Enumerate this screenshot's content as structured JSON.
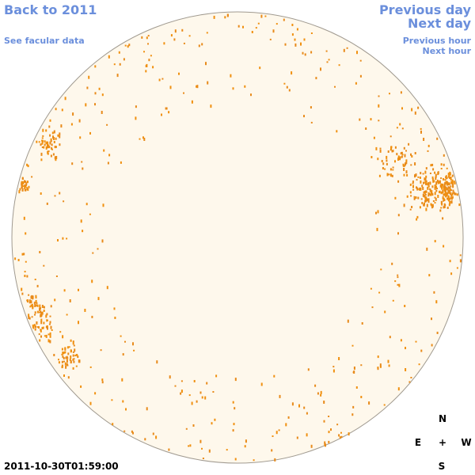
{
  "nav": {
    "back": "Back to 2011",
    "facular": "See facular data",
    "previous_day": "Previous day",
    "next_day": "Next day",
    "previous_hour": "Previous hour",
    "next_hour": "Next hour"
  },
  "timestamp": "2011-10-30T01:59:00",
  "compass": {
    "north": "N",
    "east": "E",
    "center": "+",
    "west": "W",
    "south": "S"
  }
}
